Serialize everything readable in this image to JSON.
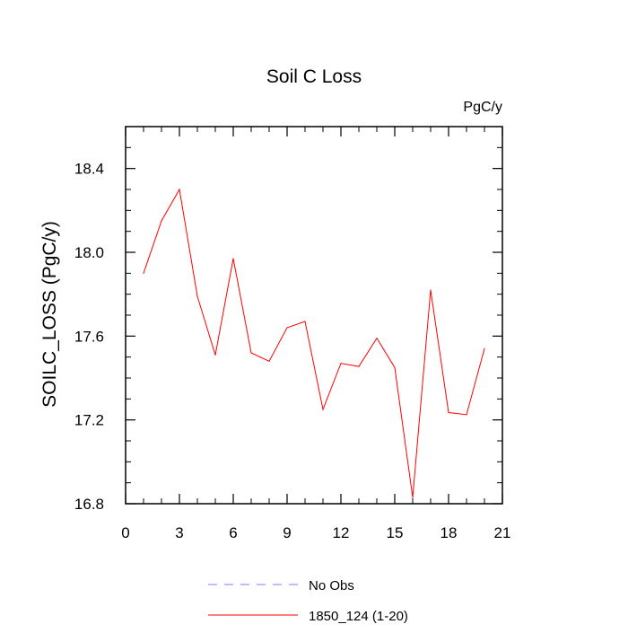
{
  "chart_data": {
    "type": "line",
    "title": "Soil C Loss",
    "units_label": "PgC/y",
    "ylabel": "SOILC_LOSS  (PgC/y)",
    "xlabel": "",
    "xlim": [
      0,
      21
    ],
    "ylim": [
      16.8,
      18.6
    ],
    "x_ticks": [
      0,
      3,
      6,
      9,
      12,
      15,
      18,
      21
    ],
    "x_tick_labels": [
      "0",
      "3",
      "6",
      "9",
      "12",
      "15",
      "18",
      "21"
    ],
    "y_ticks": [
      16.8,
      17.2,
      17.6,
      18.0,
      18.4
    ],
    "y_tick_labels": [
      "16.8",
      "17.2",
      "17.6",
      "18.0",
      "18.4"
    ],
    "grid": false,
    "legend_placement": "bottom",
    "series": [
      {
        "name": "No Obs",
        "color": "#7b7bff",
        "dash": "dashed",
        "x": [],
        "values": []
      },
      {
        "name": "1850_124 (1-20)",
        "color": "#ff0000",
        "dash": "solid",
        "x": [
          1,
          2,
          3,
          4,
          5,
          6,
          7,
          8,
          9,
          10,
          11,
          12,
          13,
          14,
          15,
          16,
          17,
          18,
          19,
          20
        ],
        "values": [
          17.9,
          18.15,
          18.3,
          17.79,
          17.51,
          17.97,
          17.52,
          17.48,
          17.64,
          17.67,
          17.25,
          17.47,
          17.455,
          17.59,
          17.45,
          16.83,
          17.82,
          17.235,
          17.225,
          17.54
        ]
      }
    ]
  }
}
